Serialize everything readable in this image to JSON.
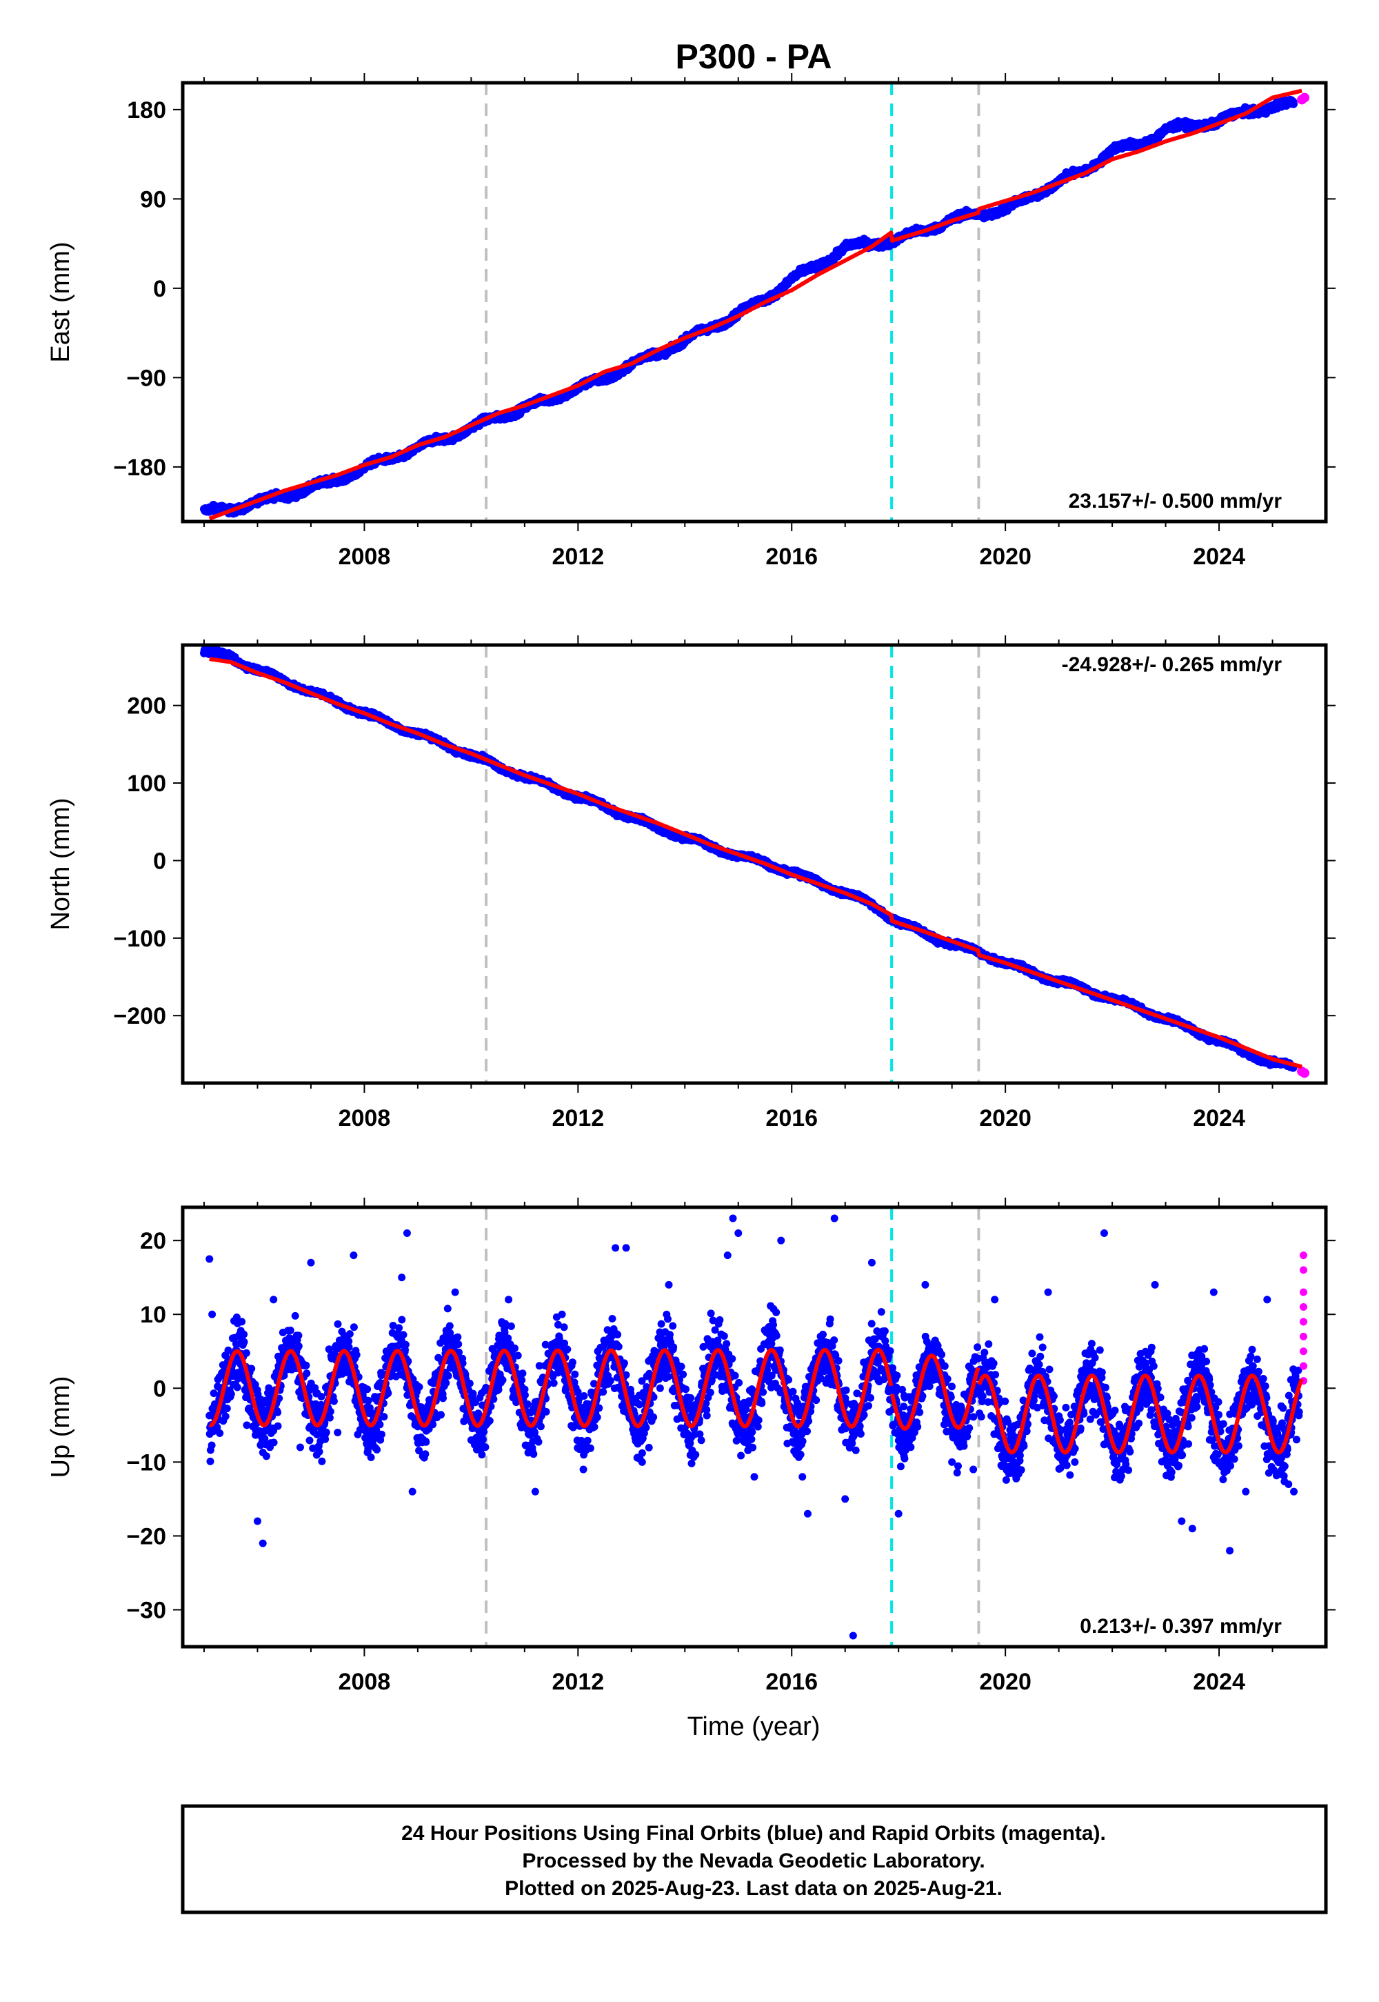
{
  "title": "P300 - PA",
  "x_label": "Time (year)",
  "footer": {
    "line1": "24 Hour Positions Using Final Orbits (blue) and Rapid Orbits (magenta).",
    "line2": "Processed by the Nevada Geodetic Laboratory.",
    "line3": "Plotted on 2025-Aug-23. Last data on 2025-Aug-21."
  },
  "colors": {
    "final_orbits": "#0000ff",
    "rapid_orbits": "#ff00ff",
    "model_fit": "#ff0000",
    "event_gray": "#c0c0c0",
    "event_cyan": "#00e5e5"
  },
  "chart_data": [
    {
      "type": "scatter",
      "panel": "east",
      "ylabel": "East (mm)",
      "rate_text": "23.157+/- 0.500 mm/yr",
      "xlim": [
        2004.6,
        2026.0
      ],
      "ylim": [
        -235,
        207
      ],
      "xticks": [
        2008,
        2012,
        2016,
        2020,
        2024
      ],
      "yticks": [
        -180,
        -90,
        0,
        90,
        180
      ],
      "event_lines": [
        {
          "x": 2010.28,
          "color": "gray"
        },
        {
          "x": 2017.87,
          "color": "cyan"
        },
        {
          "x": 2019.5,
          "color": "gray"
        }
      ],
      "series": [
        {
          "role": "final",
          "color": "blue",
          "points": [
            [
              2005.0,
              -224
            ],
            [
              2005.5,
              -224
            ],
            [
              2006.0,
              -214
            ],
            [
              2006.5,
              -210
            ],
            [
              2007.0,
              -200
            ],
            [
              2007.5,
              -194
            ],
            [
              2008.0,
              -180
            ],
            [
              2008.5,
              -172
            ],
            [
              2009.0,
              -160
            ],
            [
              2009.5,
              -152
            ],
            [
              2010.0,
              -140
            ],
            [
              2010.5,
              -130
            ],
            [
              2011.0,
              -120
            ],
            [
              2011.5,
              -112
            ],
            [
              2012.0,
              -100
            ],
            [
              2012.5,
              -92
            ],
            [
              2013.0,
              -76
            ],
            [
              2013.5,
              -66
            ],
            [
              2014.0,
              -52
            ],
            [
              2014.5,
              -40
            ],
            [
              2015.0,
              -25
            ],
            [
              2015.5,
              -12
            ],
            [
              2016.0,
              10
            ],
            [
              2016.5,
              22
            ],
            [
              2017.0,
              42
            ],
            [
              2017.5,
              44
            ],
            [
              2018.0,
              50
            ],
            [
              2018.5,
              58
            ],
            [
              2019.0,
              70
            ],
            [
              2019.5,
              74
            ],
            [
              2020.0,
              80
            ],
            [
              2020.5,
              92
            ],
            [
              2021.0,
              108
            ],
            [
              2021.5,
              118
            ],
            [
              2022.0,
              140
            ],
            [
              2022.5,
              144
            ],
            [
              2023.0,
              160
            ],
            [
              2023.5,
              164
            ],
            [
              2024.0,
              168
            ],
            [
              2024.5,
              178
            ],
            [
              2025.0,
              182
            ],
            [
              2025.4,
              186
            ]
          ]
        },
        {
          "role": "rapid",
          "color": "magenta",
          "points": [
            [
              2025.55,
              190
            ],
            [
              2025.6,
              192
            ]
          ]
        }
      ],
      "fit": [
        [
          2005.1,
          -232
        ],
        [
          2005.5,
          -224
        ],
        [
          2006.0,
          -214
        ],
        [
          2006.5,
          -204
        ],
        [
          2007.0,
          -196
        ],
        [
          2007.5,
          -188
        ],
        [
          2008.0,
          -178
        ],
        [
          2008.5,
          -170
        ],
        [
          2009.0,
          -158
        ],
        [
          2009.5,
          -150
        ],
        [
          2010.0,
          -138
        ],
        [
          2010.5,
          -126
        ],
        [
          2011.0,
          -118
        ],
        [
          2011.5,
          -108
        ],
        [
          2012.0,
          -98
        ],
        [
          2012.5,
          -84
        ],
        [
          2013.0,
          -76
        ],
        [
          2013.5,
          -62
        ],
        [
          2014.0,
          -50
        ],
        [
          2014.5,
          -40
        ],
        [
          2015.0,
          -28
        ],
        [
          2015.5,
          -14
        ],
        [
          2016.0,
          -2
        ],
        [
          2016.5,
          14
        ],
        [
          2017.0,
          28
        ],
        [
          2017.5,
          42
        ],
        [
          2017.86,
          56
        ],
        [
          2017.88,
          48
        ],
        [
          2018.5,
          58
        ],
        [
          2019.0,
          68
        ],
        [
          2019.49,
          76
        ],
        [
          2019.51,
          80
        ],
        [
          2020.0,
          88
        ],
        [
          2020.5,
          96
        ],
        [
          2021.0,
          106
        ],
        [
          2021.5,
          116
        ],
        [
          2022.0,
          130
        ],
        [
          2022.5,
          138
        ],
        [
          2023.0,
          148
        ],
        [
          2023.5,
          156
        ],
        [
          2024.0,
          166
        ],
        [
          2024.5,
          176
        ],
        [
          2025.0,
          192
        ],
        [
          2025.55,
          199
        ]
      ]
    },
    {
      "type": "scatter",
      "panel": "north",
      "ylabel": "North (mm)",
      "rate_text": "-24.928+/- 0.265 mm/yr",
      "xlim": [
        2004.6,
        2026.0
      ],
      "ylim": [
        -287,
        278
      ],
      "xticks": [
        2008,
        2012,
        2016,
        2020,
        2024
      ],
      "yticks": [
        -200,
        -100,
        0,
        100,
        200
      ],
      "event_lines": [
        {
          "x": 2010.28,
          "color": "gray"
        },
        {
          "x": 2017.87,
          "color": "cyan"
        },
        {
          "x": 2019.5,
          "color": "gray"
        }
      ],
      "series": [
        {
          "role": "final",
          "color": "blue",
          "points": [
            [
              2005.0,
              270
            ],
            [
              2005.5,
              262
            ],
            [
              2006.0,
              246
            ],
            [
              2006.5,
              232
            ],
            [
              2007.0,
              218
            ],
            [
              2007.5,
              204
            ],
            [
              2008.0,
              190
            ],
            [
              2008.5,
              176
            ],
            [
              2009.0,
              164
            ],
            [
              2009.5,
              150
            ],
            [
              2010.0,
              136
            ],
            [
              2010.5,
              122
            ],
            [
              2011.0,
              108
            ],
            [
              2011.5,
              96
            ],
            [
              2012.0,
              82
            ],
            [
              2012.5,
              70
            ],
            [
              2013.0,
              56
            ],
            [
              2013.5,
              42
            ],
            [
              2014.0,
              30
            ],
            [
              2014.5,
              18
            ],
            [
              2015.0,
              6
            ],
            [
              2015.5,
              -2
            ],
            [
              2016.0,
              -16
            ],
            [
              2016.5,
              -28
            ],
            [
              2017.0,
              -42
            ],
            [
              2017.5,
              -56
            ],
            [
              2018.0,
              -80
            ],
            [
              2018.5,
              -94
            ],
            [
              2019.0,
              -108
            ],
            [
              2019.5,
              -118
            ],
            [
              2020.0,
              -132
            ],
            [
              2020.5,
              -144
            ],
            [
              2021.0,
              -156
            ],
            [
              2021.5,
              -166
            ],
            [
              2022.0,
              -178
            ],
            [
              2022.5,
              -190
            ],
            [
              2023.0,
              -204
            ],
            [
              2023.5,
              -218
            ],
            [
              2024.0,
              -232
            ],
            [
              2024.5,
              -248
            ],
            [
              2025.0,
              -260
            ],
            [
              2025.4,
              -268
            ]
          ]
        },
        {
          "role": "rapid",
          "color": "magenta",
          "points": [
            [
              2025.55,
              -272
            ],
            [
              2025.6,
              -274
            ]
          ]
        }
      ],
      "fit": [
        [
          2005.1,
          260
        ],
        [
          2005.5,
          256
        ],
        [
          2006.0,
          242
        ],
        [
          2006.5,
          230
        ],
        [
          2007.0,
          216
        ],
        [
          2007.5,
          202
        ],
        [
          2008.0,
          190
        ],
        [
          2008.5,
          176
        ],
        [
          2009.0,
          164
        ],
        [
          2009.5,
          150
        ],
        [
          2010.0,
          138
        ],
        [
          2010.5,
          124
        ],
        [
          2011.0,
          110
        ],
        [
          2011.5,
          98
        ],
        [
          2012.0,
          86
        ],
        [
          2012.5,
          72
        ],
        [
          2013.0,
          60
        ],
        [
          2013.5,
          48
        ],
        [
          2014.0,
          34
        ],
        [
          2014.5,
          20
        ],
        [
          2015.0,
          8
        ],
        [
          2015.5,
          -4
        ],
        [
          2016.0,
          -18
        ],
        [
          2016.5,
          -30
        ],
        [
          2017.0,
          -42
        ],
        [
          2017.5,
          -56
        ],
        [
          2017.86,
          -70
        ],
        [
          2017.88,
          -78
        ],
        [
          2018.5,
          -92
        ],
        [
          2019.0,
          -104
        ],
        [
          2019.49,
          -116
        ],
        [
          2019.51,
          -122
        ],
        [
          2020.0,
          -132
        ],
        [
          2020.5,
          -144
        ],
        [
          2021.0,
          -156
        ],
        [
          2021.5,
          -168
        ],
        [
          2022.0,
          -180
        ],
        [
          2022.5,
          -192
        ],
        [
          2023.0,
          -204
        ],
        [
          2023.5,
          -216
        ],
        [
          2024.0,
          -228
        ],
        [
          2024.5,
          -242
        ],
        [
          2025.0,
          -256
        ],
        [
          2025.55,
          -266
        ]
      ]
    },
    {
      "type": "scatter",
      "panel": "up",
      "ylabel": "Up (mm)",
      "rate_text": "0.213+/- 0.397 mm/yr",
      "xlim": [
        2004.6,
        2026.0
      ],
      "ylim": [
        -35,
        24.5
      ],
      "xticks": [
        2008,
        2012,
        2016,
        2020,
        2024
      ],
      "yticks": [
        -30,
        -20,
        -10,
        0,
        10,
        20
      ],
      "event_lines": [
        {
          "x": 2010.28,
          "color": "gray"
        },
        {
          "x": 2017.87,
          "color": "cyan"
        },
        {
          "x": 2019.5,
          "color": "gray"
        }
      ],
      "series": [
        {
          "role": "final",
          "color": "blue",
          "points": [
            [
              2005.1,
              17.5
            ],
            [
              2005.15,
              10
            ],
            [
              2005.6,
              6
            ],
            [
              2005.8,
              -5
            ],
            [
              2006.0,
              -18
            ],
            [
              2006.1,
              -21
            ],
            [
              2006.3,
              12
            ],
            [
              2006.8,
              -8
            ],
            [
              2007.0,
              17
            ],
            [
              2007.5,
              -6
            ],
            [
              2007.8,
              18
            ],
            [
              2008.3,
              -7
            ],
            [
              2008.7,
              15
            ],
            [
              2008.8,
              21
            ],
            [
              2008.9,
              -14
            ],
            [
              2009.2,
              -5
            ],
            [
              2009.7,
              13
            ],
            [
              2010.2,
              -9
            ],
            [
              2010.7,
              12
            ],
            [
              2011.2,
              -14
            ],
            [
              2011.7,
              10
            ],
            [
              2012.1,
              -11
            ],
            [
              2012.7,
              19
            ],
            [
              2012.9,
              19
            ],
            [
              2013.2,
              -10
            ],
            [
              2013.7,
              14
            ],
            [
              2014.2,
              -9
            ],
            [
              2014.8,
              18
            ],
            [
              2014.9,
              23
            ],
            [
              2015.0,
              21
            ],
            [
              2015.3,
              -12
            ],
            [
              2015.8,
              20
            ],
            [
              2016.2,
              -12
            ],
            [
              2016.3,
              -17
            ],
            [
              2016.8,
              23
            ],
            [
              2017.0,
              -15
            ],
            [
              2017.15,
              -33.5
            ],
            [
              2017.5,
              17
            ],
            [
              2018.0,
              -17
            ],
            [
              2018.5,
              14
            ],
            [
              2019.0,
              -10
            ],
            [
              2019.4,
              -11
            ],
            [
              2019.8,
              12
            ],
            [
              2020.2,
              -12
            ],
            [
              2020.8,
              13
            ],
            [
              2021.3,
              -10
            ],
            [
              2021.85,
              21
            ],
            [
              2022.2,
              -11
            ],
            [
              2022.8,
              14
            ],
            [
              2023.3,
              -18
            ],
            [
              2023.5,
              -19
            ],
            [
              2023.9,
              13
            ],
            [
              2024.2,
              -22
            ],
            [
              2024.5,
              -14
            ],
            [
              2024.9,
              12
            ],
            [
              2025.3,
              -13
            ],
            [
              2025.4,
              -14
            ]
          ]
        },
        {
          "role": "rapid",
          "color": "magenta",
          "points": [
            [
              2025.58,
              18
            ],
            [
              2025.58,
              16
            ],
            [
              2025.58,
              13
            ],
            [
              2025.58,
              11
            ],
            [
              2025.58,
              9
            ],
            [
              2025.58,
              7
            ],
            [
              2025.58,
              5
            ],
            [
              2025.58,
              3
            ],
            [
              2025.58,
              1
            ]
          ]
        }
      ],
      "fit": {
        "segments": [
          {
            "x0": 2005.1,
            "x1": 2017.86,
            "mean": 0.0,
            "amp0": 5.0,
            "amp1": 5.2,
            "phase_peak": 0.62
          },
          {
            "x0": 2017.88,
            "x1": 2019.49,
            "mean": -0.5,
            "amp0": 5.0,
            "amp1": 4.8,
            "phase_peak": 0.62
          },
          {
            "x0": 2019.51,
            "x1": 2025.55,
            "mean": -3.5,
            "amp0": 5.2,
            "amp1": 5.2,
            "phase_peak": 0.62
          }
        ]
      }
    }
  ]
}
